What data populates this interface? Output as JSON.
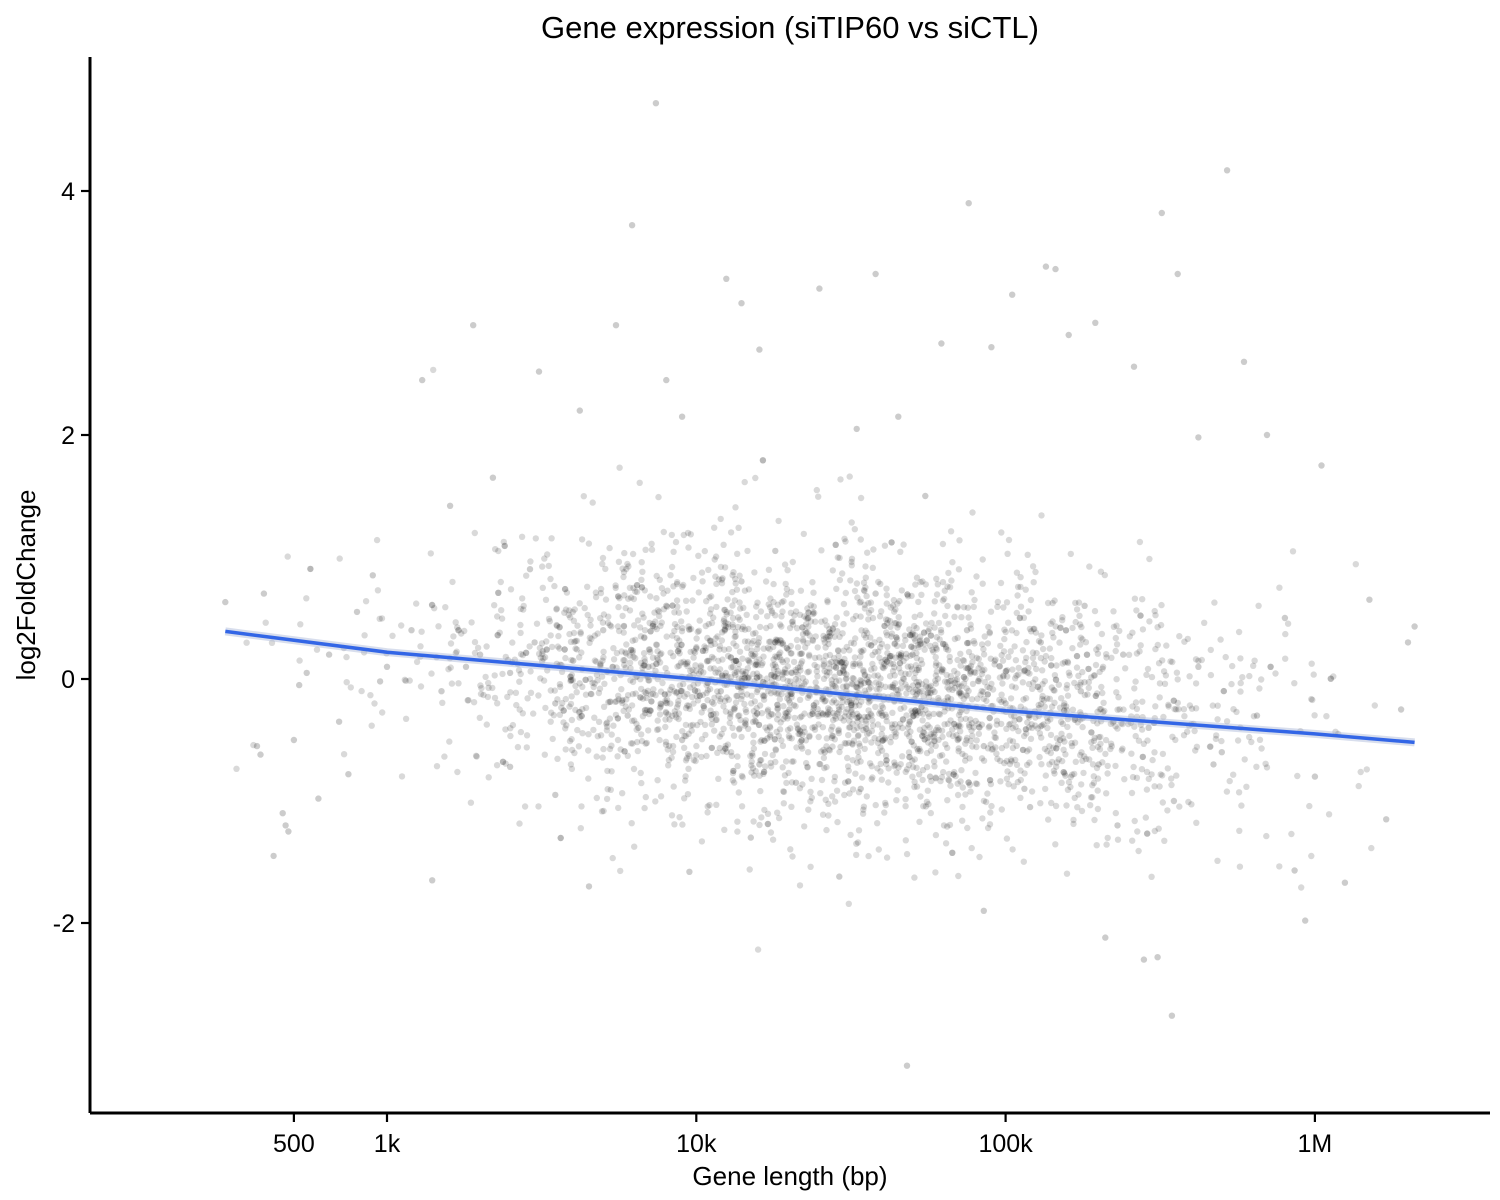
{
  "chart_data": {
    "type": "scatter",
    "title": "Gene expression (siTIP60 vs siCTL)",
    "xlabel": "Gene length (bp)",
    "ylabel": "log2FoldChange",
    "x_scale": "log10",
    "xlim": [
      150,
      3000000
    ],
    "ylim": [
      -3.5,
      5.2
    ],
    "x_ticks": [
      {
        "value": 500,
        "label": "500"
      },
      {
        "value": 1000,
        "label": "1k"
      },
      {
        "value": 10000,
        "label": "10k"
      },
      {
        "value": 100000,
        "label": "100k"
      },
      {
        "value": 1000000,
        "label": "1M"
      }
    ],
    "y_ticks": [
      {
        "value": -2,
        "label": "-2"
      },
      {
        "value": 0,
        "label": "0"
      },
      {
        "value": 2,
        "label": "2"
      },
      {
        "value": 4,
        "label": "4"
      }
    ],
    "grid": false,
    "legend": "none",
    "point_color": "#000000",
    "point_opacity": 0.15,
    "trend_color": "#3366e6",
    "series": [
      {
        "values": [
          {
            "x": 300,
            "y": 0.63
          },
          {
            "x": 400,
            "y": 0.7
          },
          {
            "x": 380,
            "y": -0.55
          },
          {
            "x": 390,
            "y": -0.62
          },
          {
            "x": 430,
            "y": -1.45
          },
          {
            "x": 460,
            "y": -1.1
          },
          {
            "x": 470,
            "y": -1.2
          },
          {
            "x": 480,
            "y": -1.25
          },
          {
            "x": 500,
            "y": -0.5
          },
          {
            "x": 520,
            "y": -0.05
          },
          {
            "x": 550,
            "y": 0.05
          },
          {
            "x": 600,
            "y": -0.98
          },
          {
            "x": 650,
            "y": 0.2
          },
          {
            "x": 700,
            "y": -0.35
          },
          {
            "x": 750,
            "y": -0.78
          },
          {
            "x": 800,
            "y": 0.55
          },
          {
            "x": 900,
            "y": 0.85
          },
          {
            "x": 950,
            "y": -0.02
          },
          {
            "x": 1200,
            "y": 0.4
          },
          {
            "x": 1300,
            "y": 2.45
          },
          {
            "x": 1400,
            "y": -1.65
          },
          {
            "x": 1600,
            "y": 1.42
          },
          {
            "x": 1800,
            "y": 0.1
          },
          {
            "x": 1900,
            "y": 2.9
          },
          {
            "x": 2200,
            "y": 1.65
          },
          {
            "x": 2500,
            "y": -0.72
          },
          {
            "x": 2900,
            "y": 0.9
          },
          {
            "x": 3100,
            "y": 2.52
          },
          {
            "x": 3500,
            "y": -0.95
          },
          {
            "x": 4200,
            "y": 2.2
          },
          {
            "x": 4500,
            "y": -1.7
          },
          {
            "x": 5500,
            "y": 2.9
          },
          {
            "x": 6200,
            "y": 3.72
          },
          {
            "x": 6500,
            "y": -0.4
          },
          {
            "x": 7400,
            "y": 4.72
          },
          {
            "x": 8000,
            "y": 2.45
          },
          {
            "x": 9000,
            "y": 2.15
          },
          {
            "x": 9500,
            "y": -1.58
          },
          {
            "x": 12500,
            "y": 3.28
          },
          {
            "x": 14000,
            "y": 3.08
          },
          {
            "x": 15000,
            "y": -1.3
          },
          {
            "x": 16000,
            "y": 2.7
          },
          {
            "x": 18000,
            "y": 1.05
          },
          {
            "x": 21000,
            "y": -0.85
          },
          {
            "x": 25000,
            "y": 3.2
          },
          {
            "x": 27000,
            "y": 0.35
          },
          {
            "x": 29000,
            "y": -1.62
          },
          {
            "x": 33000,
            "y": 2.05
          },
          {
            "x": 38000,
            "y": 3.32
          },
          {
            "x": 40000,
            "y": -0.3
          },
          {
            "x": 45000,
            "y": 2.15
          },
          {
            "x": 48000,
            "y": -3.17
          },
          {
            "x": 55000,
            "y": 1.5
          },
          {
            "x": 62000,
            "y": 2.75
          },
          {
            "x": 70000,
            "y": -0.5
          },
          {
            "x": 76000,
            "y": 3.9
          },
          {
            "x": 85000,
            "y": -1.9
          },
          {
            "x": 90000,
            "y": 2.72
          },
          {
            "x": 105000,
            "y": 3.15
          },
          {
            "x": 120000,
            "y": -1.05
          },
          {
            "x": 135000,
            "y": 3.38
          },
          {
            "x": 145000,
            "y": 3.36
          },
          {
            "x": 160000,
            "y": 2.82
          },
          {
            "x": 180000,
            "y": 0.6
          },
          {
            "x": 195000,
            "y": 2.92
          },
          {
            "x": 210000,
            "y": -2.12
          },
          {
            "x": 230000,
            "y": -1.2
          },
          {
            "x": 260000,
            "y": 2.56
          },
          {
            "x": 280000,
            "y": -2.3
          },
          {
            "x": 310000,
            "y": -2.28
          },
          {
            "x": 320000,
            "y": 3.82
          },
          {
            "x": 345000,
            "y": -2.76
          },
          {
            "x": 360000,
            "y": 3.32
          },
          {
            "x": 420000,
            "y": 1.98
          },
          {
            "x": 470000,
            "y": -0.7
          },
          {
            "x": 520000,
            "y": 4.17
          },
          {
            "x": 590000,
            "y": 2.6
          },
          {
            "x": 700000,
            "y": 2.0
          },
          {
            "x": 860000,
            "y": -1.57
          },
          {
            "x": 930000,
            "y": -1.98
          },
          {
            "x": 1050000,
            "y": 1.75
          },
          {
            "x": 1250000,
            "y": -1.67
          },
          {
            "x": 1500000,
            "y": 0.65
          },
          {
            "x": 1700000,
            "y": -1.15
          },
          {
            "x": 2000000,
            "y": 0.3
          },
          {
            "x": 2100000,
            "y": 0.43
          },
          {
            "x": 1900000,
            "y": -0.25
          },
          {
            "x": 1000,
            "y": 0.1
          },
          {
            "x": 1500,
            "y": -0.1
          },
          {
            "x": 2000,
            "y": 0.2
          },
          {
            "x": 2500,
            "y": 0.05
          },
          {
            "x": 3000,
            "y": 0.3
          },
          {
            "x": 3500,
            "y": -0.2
          },
          {
            "x": 4000,
            "y": 0.15
          },
          {
            "x": 5000,
            "y": 0.4
          },
          {
            "x": 6000,
            "y": -0.3
          },
          {
            "x": 7000,
            "y": 0.1
          },
          {
            "x": 8000,
            "y": 0.6
          },
          {
            "x": 9000,
            "y": -0.5
          },
          {
            "x": 10000,
            "y": 0.25
          },
          {
            "x": 12000,
            "y": -0.1
          },
          {
            "x": 14000,
            "y": 0.8
          },
          {
            "x": 16000,
            "y": -0.7
          },
          {
            "x": 18000,
            "y": 0.3
          },
          {
            "x": 20000,
            "y": -0.25
          },
          {
            "x": 23000,
            "y": 0.5
          },
          {
            "x": 26000,
            "y": -0.6
          },
          {
            "x": 30000,
            "y": 0.05
          },
          {
            "x": 34000,
            "y": -0.9
          },
          {
            "x": 38000,
            "y": 0.7
          },
          {
            "x": 43000,
            "y": -0.4
          },
          {
            "x": 50000,
            "y": 0.2
          },
          {
            "x": 57000,
            "y": -0.8
          },
          {
            "x": 65000,
            "y": -0.15
          },
          {
            "x": 75000,
            "y": 0.4
          },
          {
            "x": 85000,
            "y": -0.55
          },
          {
            "x": 100000,
            "y": -0.2
          },
          {
            "x": 115000,
            "y": -0.9
          },
          {
            "x": 130000,
            "y": 0.3
          },
          {
            "x": 150000,
            "y": -0.5
          },
          {
            "x": 175000,
            "y": -0.1
          },
          {
            "x": 200000,
            "y": -0.7
          },
          {
            "x": 240000,
            "y": 0.2
          },
          {
            "x": 290000,
            "y": -0.4
          },
          {
            "x": 350000,
            "y": -1.0
          },
          {
            "x": 420000,
            "y": 0.1
          },
          {
            "x": 500000,
            "y": -0.6
          },
          {
            "x": 650000,
            "y": -0.3
          },
          {
            "x": 800000,
            "y": 0.5
          },
          {
            "x": 1000000,
            "y": -0.8
          }
        ]
      },
      {
        "type": "line",
        "values": [
          {
            "x": 300,
            "y": 0.39
          },
          {
            "x": 1000,
            "y": 0.22
          },
          {
            "x": 10000,
            "y": 0.0
          },
          {
            "x": 100000,
            "y": -0.26
          },
          {
            "x": 1000000,
            "y": -0.45
          },
          {
            "x": 2100000,
            "y": -0.52
          }
        ]
      }
    ]
  }
}
